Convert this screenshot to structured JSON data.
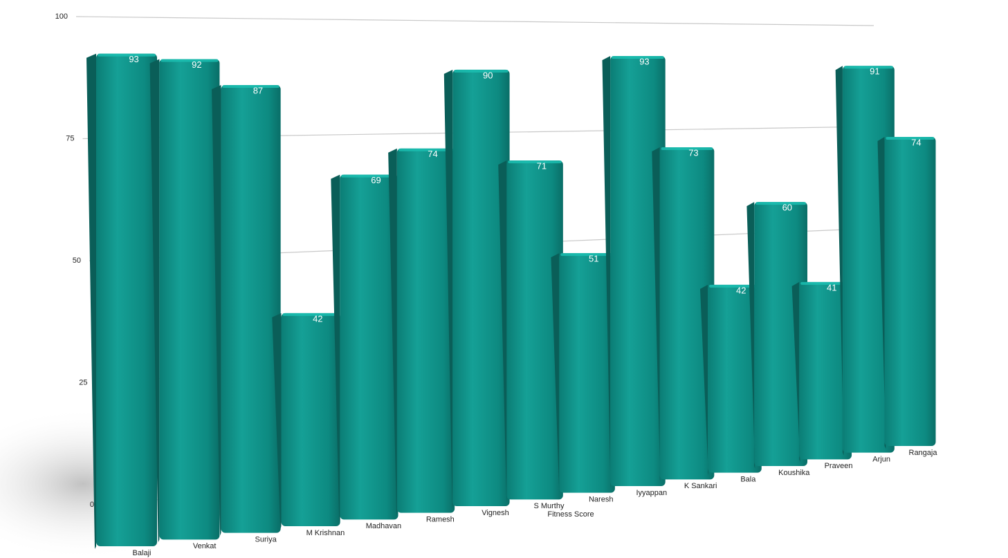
{
  "chart_data": {
    "type": "bar3d",
    "x_label": "Fitness Score",
    "categories": [
      "Balaji",
      "Venkat",
      "Suriya",
      "M Krishnan",
      "Madhavan",
      "Ramesh",
      "Vignesh",
      "S Murthy",
      "Naresh",
      "Iyyappan",
      "K Sankari",
      "Bala",
      "Koushika",
      "Praveen",
      "Arjun",
      "Rangaja"
    ],
    "values": [
      93,
      92,
      87,
      42,
      69,
      74,
      90,
      71,
      51,
      93,
      73,
      42,
      60,
      41,
      91,
      74
    ],
    "color": "#0e8f86",
    "ylim": [
      0,
      100
    ],
    "yticks": [
      0,
      25,
      50,
      75,
      100
    ],
    "grid": true
  }
}
